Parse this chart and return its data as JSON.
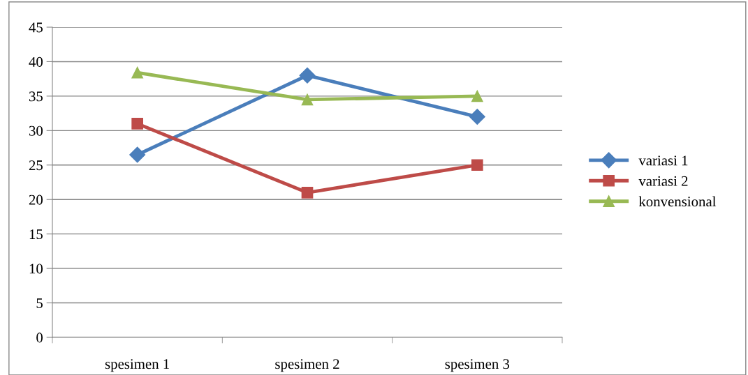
{
  "chart_data": {
    "type": "line",
    "categories": [
      "spesimen 1",
      "spesimen 2",
      "spesimen 3"
    ],
    "series": [
      {
        "name": "variasi 1",
        "color": "#4a7ebb",
        "values": [
          26.5,
          38,
          32
        ],
        "marker": "diamond"
      },
      {
        "name": "variasi 2",
        "color": "#be4b48",
        "values": [
          31,
          21,
          25
        ],
        "marker": "square"
      },
      {
        "name": "konvensional",
        "color": "#98b954",
        "values": [
          38.4,
          34.5,
          35
        ],
        "marker": "triangle"
      }
    ],
    "ylim": [
      0,
      45
    ],
    "yticks": [
      0,
      5,
      10,
      15,
      20,
      25,
      30,
      35,
      40,
      45
    ],
    "grid": "y",
    "legend": "right",
    "line_style": "solid"
  }
}
